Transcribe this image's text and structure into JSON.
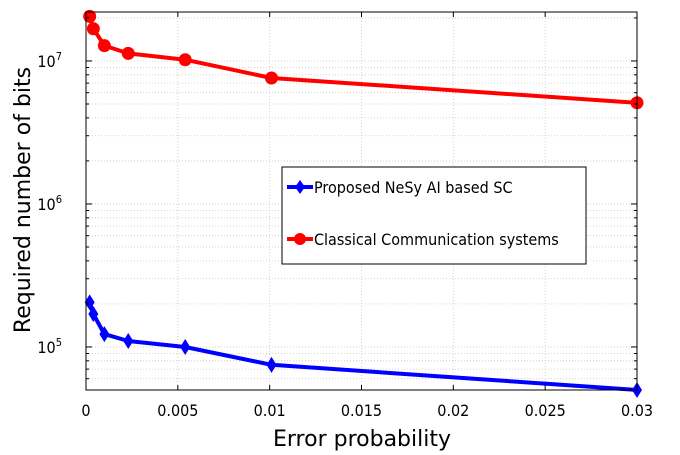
{
  "chart_data": {
    "type": "line",
    "xlabel": "Error probability",
    "ylabel": "Required number of bits",
    "xlim": [
      0,
      0.03
    ],
    "ylim": [
      50000,
      22000000
    ],
    "yscale": "log",
    "grid": true,
    "legend_position": "center-right",
    "x_ticks": [
      "0",
      "0.005",
      "0.01",
      "0.015",
      "0.02",
      "0.025",
      "0.03"
    ],
    "y_ticks": [
      {
        "value": 100000,
        "base": "10",
        "exp": "5"
      },
      {
        "value": 1000000,
        "base": "10",
        "exp": "6"
      },
      {
        "value": 10000000,
        "base": "10",
        "exp": "7"
      }
    ],
    "series": [
      {
        "name": "Proposed NeSy AI based SC",
        "color": "#0000ff",
        "marker": "diamond",
        "x": [
          0.0002,
          0.0004,
          0.001,
          0.0023,
          0.0054,
          0.0101,
          0.03
        ],
        "y": [
          205000,
          170000,
          123000,
          110000,
          100000,
          75000,
          50000
        ]
      },
      {
        "name": "Classical Communication systems",
        "color": "#ff0000",
        "marker": "circle",
        "x": [
          0.0002,
          0.0004,
          0.001,
          0.0023,
          0.0054,
          0.0101,
          0.03
        ],
        "y": [
          20500000,
          16800000,
          12800000,
          11300000,
          10200000,
          7600000,
          5100000
        ]
      }
    ]
  }
}
